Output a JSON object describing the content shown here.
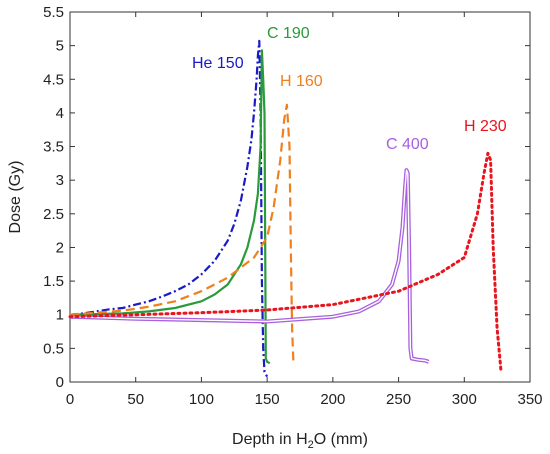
{
  "chart_data": {
    "type": "line",
    "xlabel": "Depth in H₂O (mm)",
    "xlabel_parts": {
      "pre": "Depth in H",
      "sub": "2",
      "post": "O (mm)"
    },
    "ylabel": "Dose (Gy)",
    "xlim": [
      0,
      350
    ],
    "ylim": [
      0,
      5.5
    ],
    "xticks": [
      0,
      50,
      100,
      150,
      200,
      250,
      300,
      350
    ],
    "yticks": [
      0,
      0.5,
      1,
      1.5,
      2,
      2.5,
      3,
      3.5,
      4,
      4.5,
      5,
      5.5
    ],
    "grid": false,
    "series": [
      {
        "name": "He 150",
        "color": "#1a1ac8",
        "style": "dashdot",
        "x": [
          0,
          10,
          20,
          30,
          40,
          50,
          60,
          70,
          80,
          90,
          100,
          110,
          120,
          125,
          130,
          135,
          138,
          140,
          142,
          143,
          144,
          145,
          146,
          147,
          148,
          150
        ],
        "y": [
          1.0,
          1.02,
          1.05,
          1.08,
          1.1,
          1.15,
          1.2,
          1.27,
          1.35,
          1.45,
          1.6,
          1.8,
          2.1,
          2.35,
          2.7,
          3.2,
          3.6,
          4.0,
          4.5,
          4.85,
          5.07,
          4.0,
          1.5,
          0.5,
          0.15,
          0.08
        ]
      },
      {
        "name": "C 190",
        "color": "#2a9a3a",
        "style": "solid",
        "x": [
          0,
          20,
          40,
          60,
          80,
          100,
          110,
          120,
          130,
          135,
          140,
          143,
          145,
          146,
          147,
          148,
          149,
          150,
          152
        ],
        "y": [
          1.0,
          1.01,
          1.02,
          1.05,
          1.1,
          1.2,
          1.3,
          1.45,
          1.75,
          2.0,
          2.4,
          2.8,
          3.5,
          4.93,
          4.5,
          4.0,
          0.35,
          0.3,
          0.28
        ]
      },
      {
        "name": "H 160",
        "color": "#f07f1e",
        "style": "dashed",
        "x": [
          0,
          20,
          40,
          60,
          80,
          100,
          120,
          140,
          150,
          155,
          160,
          163,
          165,
          167,
          168,
          169,
          170
        ],
        "y": [
          1.0,
          1.03,
          1.06,
          1.12,
          1.2,
          1.35,
          1.55,
          1.85,
          2.15,
          2.6,
          3.3,
          3.9,
          4.12,
          3.5,
          2.0,
          0.8,
          0.3
        ]
      },
      {
        "name": "C 400",
        "color": "#a860dc",
        "style": "double",
        "x": [
          0,
          50,
          100,
          150,
          200,
          220,
          235,
          245,
          250,
          253,
          255,
          256,
          257,
          258,
          259,
          260,
          265,
          270,
          273
        ],
        "y": [
          0.97,
          0.94,
          0.92,
          0.9,
          0.97,
          1.05,
          1.2,
          1.45,
          1.8,
          2.3,
          2.9,
          3.15,
          3.1,
          2.0,
          0.5,
          0.35,
          0.33,
          0.32,
          0.3
        ]
      },
      {
        "name": "H 230",
        "color": "#e8141e",
        "style": "dotted",
        "x": [
          0,
          50,
          100,
          150,
          200,
          250,
          280,
          300,
          310,
          315,
          318,
          320,
          322,
          325,
          328
        ],
        "y": [
          0.97,
          1.0,
          1.03,
          1.07,
          1.15,
          1.35,
          1.6,
          1.85,
          2.5,
          3.1,
          3.4,
          3.3,
          2.0,
          0.8,
          0.15
        ]
      }
    ]
  }
}
